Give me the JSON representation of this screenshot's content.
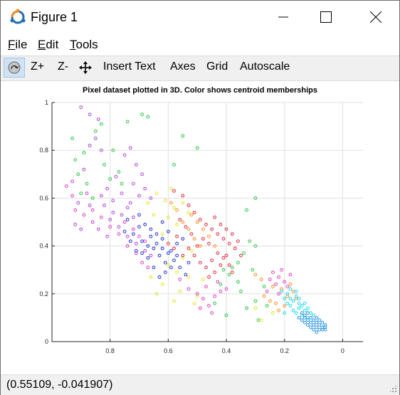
{
  "window": {
    "title": "Figure 1",
    "controls": {
      "minimize": "minimize",
      "maximize": "maximize",
      "close": "close"
    }
  },
  "menu": [
    {
      "mnemonic": "F",
      "rest": "ile"
    },
    {
      "mnemonic": "E",
      "rest": "dit"
    },
    {
      "mnemonic": "T",
      "rest": "ools"
    }
  ],
  "toolbar": {
    "rotate_icon": "rotate-3d-icon",
    "zoom_in": "Z+",
    "zoom_out": "Z-",
    "pan_icon": "pan-icon",
    "insert_text": "Insert Text",
    "axes": "Axes",
    "grid": "Grid",
    "autoscale": "Autoscale"
  },
  "status": {
    "coordinates": "(0.55109, -0.041907)"
  },
  "colors": {
    "titlebar_bg": "#ffffff",
    "toolbar_bg": "#f0f0f0",
    "statusbar_bg": "#f0f0f0",
    "grid": "#e0e0e0",
    "icon_orange": "#f28b22",
    "icon_blue": "#1f6fb2"
  },
  "chart_data": {
    "type": "scatter",
    "title": "Pixel dataset plotted in 3D. Color shows centroid memberships",
    "xlabel": "",
    "ylabel": "",
    "xlim": [
      1.0,
      -0.07
    ],
    "x_reversed": true,
    "ylim": [
      0,
      1
    ],
    "x_ticks": [
      0.8,
      0.6,
      0.4,
      0.2,
      0
    ],
    "y_ticks": [
      0,
      0.2,
      0.4,
      0.6,
      0.8,
      1
    ],
    "x_tick_labels": [
      "0.8",
      "0.6",
      "0.4",
      "0.2",
      "0"
    ],
    "y_tick_labels": [
      "0",
      "0.2",
      "0.4",
      "0.6",
      "0.8",
      "1"
    ],
    "grid": true,
    "marker": "open-circle",
    "series": [
      {
        "color": "#22c63a",
        "points": [
          [
            0.93,
            0.85
          ],
          [
            0.91,
            0.7
          ],
          [
            0.88,
            0.66
          ],
          [
            0.9,
            0.62
          ],
          [
            0.92,
            0.76
          ],
          [
            0.85,
            0.88
          ],
          [
            0.82,
            0.74
          ],
          [
            0.79,
            0.8
          ],
          [
            0.77,
            0.71
          ],
          [
            0.74,
            0.92
          ],
          [
            0.69,
            0.95
          ],
          [
            0.67,
            0.94
          ],
          [
            0.86,
            0.6
          ],
          [
            0.89,
            0.79
          ],
          [
            0.8,
            0.68
          ],
          [
            0.83,
            0.91
          ],
          [
            0.76,
            0.66
          ],
          [
            0.58,
            0.74
          ],
          [
            0.55,
            0.86
          ],
          [
            0.5,
            0.81
          ],
          [
            0.3,
            0.6
          ],
          [
            0.33,
            0.55
          ],
          [
            0.32,
            0.42
          ],
          [
            0.3,
            0.4
          ],
          [
            0.36,
            0.33
          ],
          [
            0.34,
            0.37
          ],
          [
            0.39,
            0.28
          ],
          [
            0.42,
            0.24
          ],
          [
            0.35,
            0.21
          ],
          [
            0.3,
            0.17
          ],
          [
            0.27,
            0.23
          ],
          [
            0.38,
            0.31
          ],
          [
            0.31,
            0.3
          ],
          [
            0.44,
            0.16
          ],
          [
            0.29,
            0.09
          ],
          [
            0.33,
            0.14
          ],
          [
            0.36,
            0.25
          ],
          [
            0.41,
            0.3
          ],
          [
            0.26,
            0.15
          ],
          [
            0.4,
            0.11
          ]
        ]
      },
      {
        "color": "#e5e520",
        "points": [
          [
            0.64,
            0.62
          ],
          [
            0.61,
            0.59
          ],
          [
            0.58,
            0.56
          ],
          [
            0.55,
            0.58
          ],
          [
            0.6,
            0.52
          ],
          [
            0.57,
            0.49
          ],
          [
            0.62,
            0.45
          ],
          [
            0.65,
            0.53
          ],
          [
            0.53,
            0.54
          ],
          [
            0.67,
            0.58
          ],
          [
            0.59,
            0.64
          ],
          [
            0.55,
            0.35
          ],
          [
            0.52,
            0.38
          ],
          [
            0.57,
            0.29
          ],
          [
            0.6,
            0.32
          ],
          [
            0.62,
            0.24
          ],
          [
            0.56,
            0.21
          ],
          [
            0.5,
            0.19
          ],
          [
            0.53,
            0.27
          ],
          [
            0.64,
            0.2
          ],
          [
            0.48,
            0.26
          ],
          [
            0.58,
            0.17
          ],
          [
            0.51,
            0.16
          ],
          [
            0.66,
            0.27
          ],
          [
            0.3,
            0.14
          ],
          [
            0.28,
            0.09
          ],
          [
            0.24,
            0.12
          ]
        ]
      },
      {
        "color": "#b040d8",
        "points": [
          [
            0.9,
            0.98
          ],
          [
            0.87,
            0.95
          ],
          [
            0.84,
            0.93
          ],
          [
            0.85,
            0.85
          ],
          [
            0.87,
            0.82
          ],
          [
            0.83,
            0.8
          ],
          [
            0.89,
            0.72
          ],
          [
            0.88,
            0.62
          ],
          [
            0.91,
            0.58
          ],
          [
            0.87,
            0.57
          ],
          [
            0.86,
            0.5
          ],
          [
            0.84,
            0.47
          ],
          [
            0.81,
            0.44
          ],
          [
            0.79,
            0.54
          ],
          [
            0.83,
            0.61
          ],
          [
            0.81,
            0.64
          ],
          [
            0.78,
            0.69
          ],
          [
            0.76,
            0.62
          ],
          [
            0.74,
            0.56
          ],
          [
            0.72,
            0.52
          ],
          [
            0.75,
            0.78
          ],
          [
            0.73,
            0.81
          ],
          [
            0.71,
            0.74
          ],
          [
            0.69,
            0.7
          ],
          [
            0.68,
            0.64
          ],
          [
            0.66,
            0.6
          ],
          [
            0.72,
            0.66
          ],
          [
            0.7,
            0.61
          ],
          [
            0.73,
            0.58
          ],
          [
            0.76,
            0.53
          ],
          [
            0.79,
            0.59
          ],
          [
            0.82,
            0.57
          ],
          [
            0.8,
            0.51
          ],
          [
            0.77,
            0.48
          ],
          [
            0.74,
            0.44
          ],
          [
            0.71,
            0.41
          ],
          [
            0.68,
            0.38
          ],
          [
            0.66,
            0.36
          ],
          [
            0.93,
            0.67
          ],
          [
            0.92,
            0.49
          ],
          [
            0.9,
            0.47
          ]
        ]
      },
      {
        "color": "#e03ac0",
        "points": [
          [
            0.95,
            0.65
          ],
          [
            0.93,
            0.61
          ],
          [
            0.92,
            0.55
          ],
          [
            0.89,
            0.53
          ],
          [
            0.86,
            0.55
          ],
          [
            0.83,
            0.52
          ],
          [
            0.8,
            0.48
          ],
          [
            0.77,
            0.45
          ],
          [
            0.75,
            0.5
          ],
          [
            0.72,
            0.47
          ],
          [
            0.7,
            0.44
          ],
          [
            0.68,
            0.42
          ],
          [
            0.74,
            0.4
          ],
          [
            0.71,
            0.37
          ],
          [
            0.69,
            0.33
          ],
          [
            0.67,
            0.31
          ],
          [
            0.56,
            0.26
          ],
          [
            0.53,
            0.22
          ],
          [
            0.5,
            0.2
          ],
          [
            0.48,
            0.18
          ],
          [
            0.46,
            0.15
          ],
          [
            0.44,
            0.19
          ],
          [
            0.47,
            0.23
          ],
          [
            0.49,
            0.14
          ],
          [
            0.45,
            0.12
          ],
          [
            0.42,
            0.21
          ],
          [
            0.43,
            0.25
          ],
          [
            0.4,
            0.22
          ],
          [
            0.24,
            0.29
          ],
          [
            0.22,
            0.27
          ],
          [
            0.21,
            0.3
          ],
          [
            0.2,
            0.25
          ],
          [
            0.19,
            0.23
          ],
          [
            0.23,
            0.24
          ],
          [
            0.25,
            0.26
          ],
          [
            0.18,
            0.28
          ],
          [
            0.26,
            0.21
          ],
          [
            0.22,
            0.2
          ]
        ]
      },
      {
        "color": "#e0253a",
        "points": [
          [
            0.58,
            0.63
          ],
          [
            0.55,
            0.61
          ],
          [
            0.53,
            0.57
          ],
          [
            0.51,
            0.54
          ],
          [
            0.49,
            0.51
          ],
          [
            0.47,
            0.49
          ],
          [
            0.45,
            0.47
          ],
          [
            0.43,
            0.45
          ],
          [
            0.41,
            0.43
          ],
          [
            0.39,
            0.41
          ],
          [
            0.44,
            0.52
          ],
          [
            0.42,
            0.49
          ],
          [
            0.4,
            0.47
          ],
          [
            0.38,
            0.45
          ],
          [
            0.36,
            0.42
          ],
          [
            0.37,
            0.39
          ],
          [
            0.35,
            0.36
          ],
          [
            0.48,
            0.43
          ],
          [
            0.5,
            0.4
          ],
          [
            0.46,
            0.41
          ],
          [
            0.52,
            0.45
          ],
          [
            0.54,
            0.48
          ],
          [
            0.56,
            0.51
          ],
          [
            0.57,
            0.44
          ],
          [
            0.53,
            0.39
          ],
          [
            0.51,
            0.36
          ],
          [
            0.49,
            0.33
          ],
          [
            0.47,
            0.31
          ],
          [
            0.45,
            0.34
          ],
          [
            0.43,
            0.37
          ],
          [
            0.41,
            0.35
          ],
          [
            0.39,
            0.32
          ],
          [
            0.55,
            0.36
          ],
          [
            0.58,
            0.39
          ],
          [
            0.46,
            0.27
          ],
          [
            0.44,
            0.29
          ],
          [
            0.42,
            0.32
          ],
          [
            0.4,
            0.36
          ],
          [
            0.38,
            0.29
          ],
          [
            0.6,
            0.41
          ]
        ]
      },
      {
        "color": "#1c2dd4",
        "points": [
          [
            0.7,
            0.53
          ],
          [
            0.68,
            0.49
          ],
          [
            0.66,
            0.47
          ],
          [
            0.64,
            0.45
          ],
          [
            0.62,
            0.43
          ],
          [
            0.65,
            0.39
          ],
          [
            0.63,
            0.36
          ],
          [
            0.61,
            0.33
          ],
          [
            0.59,
            0.38
          ],
          [
            0.57,
            0.41
          ],
          [
            0.6,
            0.46
          ],
          [
            0.62,
            0.5
          ],
          [
            0.72,
            0.45
          ],
          [
            0.69,
            0.42
          ],
          [
            0.67,
            0.4
          ],
          [
            0.58,
            0.34
          ],
          [
            0.56,
            0.31
          ],
          [
            0.54,
            0.28
          ],
          [
            0.61,
            0.29
          ],
          [
            0.63,
            0.27
          ],
          [
            0.65,
            0.31
          ],
          [
            0.67,
            0.35
          ],
          [
            0.71,
            0.38
          ],
          [
            0.73,
            0.42
          ],
          [
            0.75,
            0.46
          ],
          [
            0.55,
            0.43
          ],
          [
            0.53,
            0.33
          ],
          [
            0.6,
            0.37
          ],
          [
            0.64,
            0.41
          ],
          [
            0.66,
            0.44
          ],
          [
            0.57,
            0.36
          ],
          [
            0.69,
            0.37
          ],
          [
            0.59,
            0.31
          ],
          [
            0.62,
            0.39
          ],
          [
            0.7,
            0.48
          ],
          [
            0.74,
            0.51
          ]
        ]
      },
      {
        "color": "#ff8a1c",
        "points": [
          [
            0.52,
            0.53
          ],
          [
            0.5,
            0.5
          ],
          [
            0.48,
            0.47
          ],
          [
            0.46,
            0.44
          ],
          [
            0.44,
            0.4
          ],
          [
            0.3,
            0.28
          ],
          [
            0.28,
            0.26
          ],
          [
            0.27,
            0.19
          ],
          [
            0.25,
            0.17
          ],
          [
            0.23,
            0.16
          ],
          [
            0.21,
            0.22
          ],
          [
            0.19,
            0.19
          ],
          [
            0.17,
            0.21
          ],
          [
            0.16,
            0.18
          ],
          [
            0.2,
            0.15
          ],
          [
            0.22,
            0.13
          ],
          [
            0.24,
            0.23
          ],
          [
            0.18,
            0.24
          ],
          [
            0.55,
            0.5
          ],
          [
            0.53,
            0.47
          ],
          [
            0.51,
            0.43
          ],
          [
            0.49,
            0.4
          ],
          [
            0.57,
            0.55
          ],
          [
            0.59,
            0.58
          ]
        ]
      },
      {
        "color": "#18d8e8",
        "points": [
          [
            0.21,
            0.21
          ],
          [
            0.19,
            0.2
          ],
          [
            0.18,
            0.18
          ],
          [
            0.17,
            0.17
          ],
          [
            0.16,
            0.19
          ],
          [
            0.15,
            0.16
          ],
          [
            0.14,
            0.15
          ],
          [
            0.13,
            0.13
          ],
          [
            0.12,
            0.14
          ],
          [
            0.11,
            0.12
          ],
          [
            0.15,
            0.14
          ],
          [
            0.17,
            0.13
          ],
          [
            0.19,
            0.16
          ],
          [
            0.2,
            0.18
          ],
          [
            0.18,
            0.15
          ],
          [
            0.16,
            0.12
          ],
          [
            0.14,
            0.11
          ],
          [
            0.13,
            0.16
          ],
          [
            0.12,
            0.1
          ],
          [
            0.1,
            0.11
          ],
          [
            0.18,
            0.22
          ],
          [
            0.16,
            0.21
          ],
          [
            0.2,
            0.12
          ],
          [
            0.15,
            0.18
          ]
        ]
      },
      {
        "color": "#1c8ee0",
        "points": [
          [
            0.14,
            0.12
          ],
          [
            0.13,
            0.11
          ],
          [
            0.12,
            0.12
          ],
          [
            0.11,
            0.1
          ],
          [
            0.1,
            0.09
          ],
          [
            0.09,
            0.1
          ],
          [
            0.09,
            0.08
          ],
          [
            0.08,
            0.07
          ],
          [
            0.07,
            0.08
          ],
          [
            0.07,
            0.06
          ],
          [
            0.06,
            0.05
          ],
          [
            0.06,
            0.07
          ],
          [
            0.08,
            0.09
          ],
          [
            0.1,
            0.07
          ],
          [
            0.11,
            0.08
          ],
          [
            0.12,
            0.09
          ],
          [
            0.13,
            0.08
          ],
          [
            0.09,
            0.06
          ],
          [
            0.08,
            0.05
          ],
          [
            0.07,
            0.05
          ],
          [
            0.11,
            0.06
          ],
          [
            0.12,
            0.07
          ],
          [
            0.1,
            0.05
          ],
          [
            0.14,
            0.09
          ],
          [
            0.15,
            0.1
          ],
          [
            0.09,
            0.04
          ],
          [
            0.06,
            0.06
          ],
          [
            0.13,
            0.1
          ]
        ]
      }
    ]
  }
}
